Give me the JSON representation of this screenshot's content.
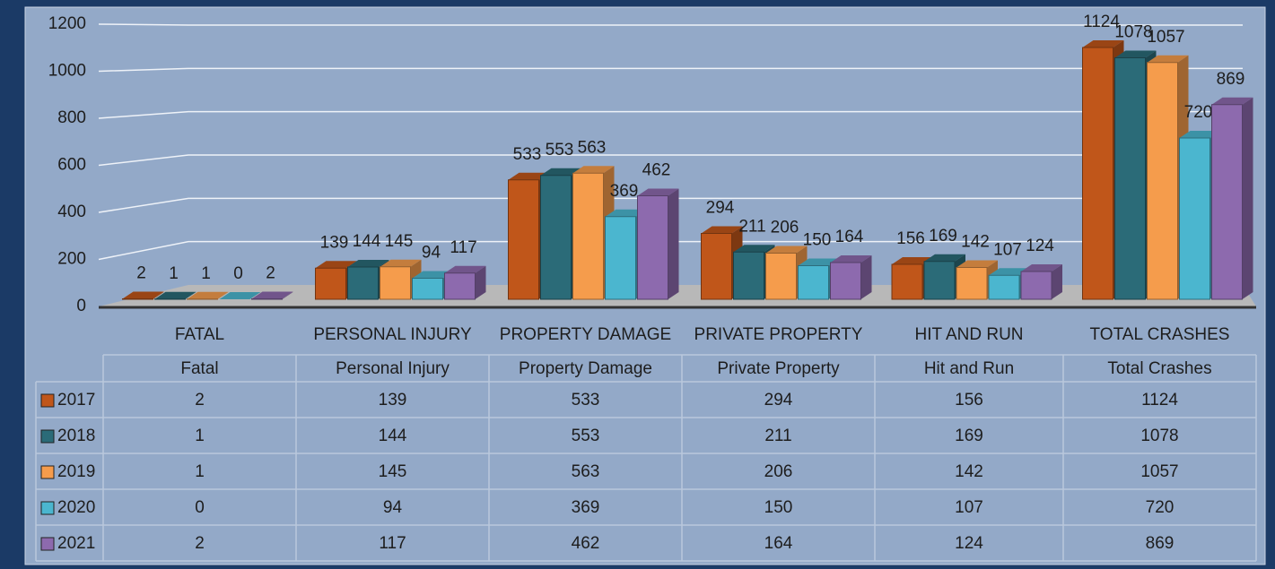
{
  "chart_data": {
    "type": "bar3d",
    "categories": [
      "FATAL",
      "PERSONAL INJURY",
      "PROPERTY DAMAGE",
      "PRIVATE PROPERTY",
      "HIT AND RUN",
      "TOTAL CRASHES"
    ],
    "table_categories": [
      "Fatal",
      "Personal Injury",
      "Property Damage",
      "Private Property",
      "Hit and Run",
      "Total Crashes"
    ],
    "series": [
      {
        "name": "2017",
        "color": "#c0561a",
        "values": [
          2,
          139,
          533,
          294,
          156,
          1124
        ]
      },
      {
        "name": "2018",
        "color": "#2b6b78",
        "values": [
          1,
          144,
          553,
          211,
          169,
          1078
        ]
      },
      {
        "name": "2019",
        "color": "#f59c4c",
        "values": [
          1,
          145,
          563,
          206,
          142,
          1057
        ]
      },
      {
        "name": "2020",
        "color": "#4bb6cf",
        "values": [
          0,
          94,
          369,
          150,
          107,
          720
        ]
      },
      {
        "name": "2021",
        "color": "#8d6aae",
        "values": [
          2,
          117,
          462,
          164,
          124,
          869
        ]
      }
    ],
    "ylim": [
      0,
      1200
    ],
    "yticks": [
      0,
      200,
      400,
      600,
      800,
      1000,
      1200
    ],
    "grid": true
  }
}
